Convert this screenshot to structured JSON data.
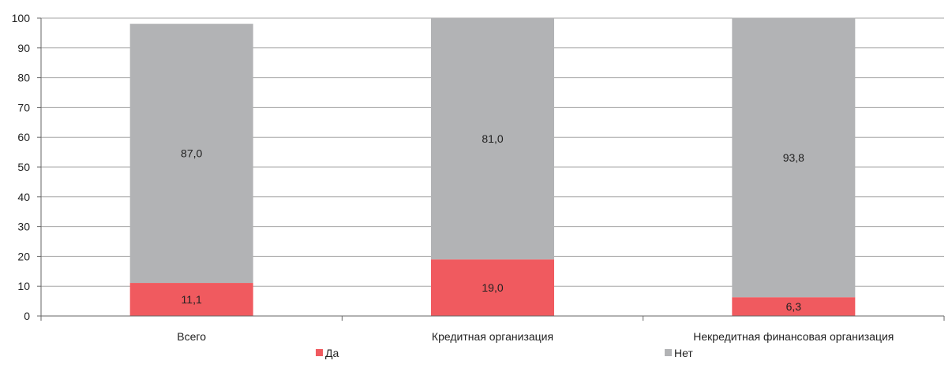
{
  "chart_data": {
    "type": "bar",
    "stacked": true,
    "categories": [
      "Всего",
      "Кредитная организация",
      "Некредитная финансовая организация"
    ],
    "series": [
      {
        "name": "Да",
        "values": [
          11.1,
          19.0,
          6.3
        ],
        "labels": [
          "11,1",
          "19,0",
          "6,3"
        ],
        "color": "#f05a5f"
      },
      {
        "name": "Нет",
        "values": [
          87.0,
          81.0,
          93.8
        ],
        "labels": [
          "87,0",
          "81,0",
          "93,8"
        ],
        "color": "#b2b3b5"
      }
    ],
    "ylim": [
      0,
      100
    ],
    "yticks": [
      0,
      10,
      20,
      30,
      40,
      50,
      60,
      70,
      80,
      90,
      100
    ],
    "grid": true,
    "legend_position": "bottom",
    "title": "",
    "xlabel": "",
    "ylabel": ""
  }
}
